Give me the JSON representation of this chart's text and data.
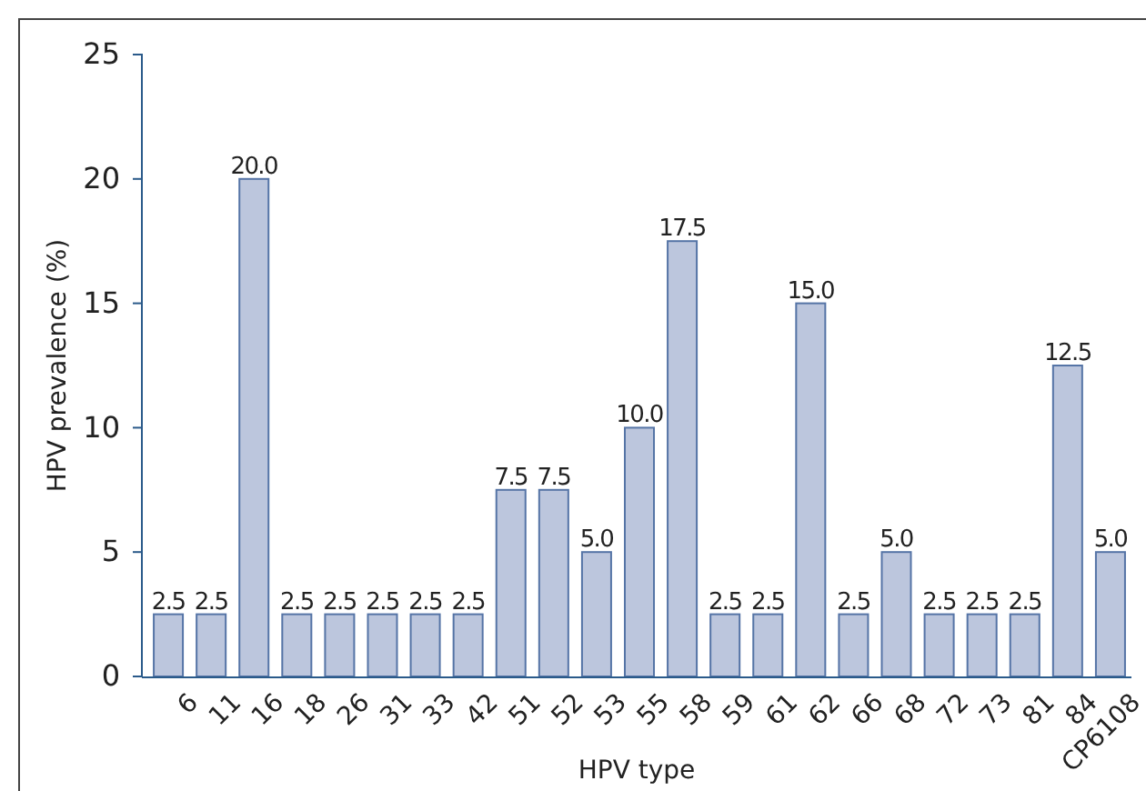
{
  "chart_data": {
    "type": "bar",
    "xlabel": "HPV type",
    "ylabel": "HPV prevalence (%)",
    "categories": [
      "6",
      "11",
      "16",
      "18",
      "26",
      "31",
      "33",
      "42",
      "51",
      "52",
      "53",
      "55",
      "58",
      "59",
      "61",
      "62",
      "66",
      "68",
      "72",
      "73",
      "81",
      "84",
      "CP6108"
    ],
    "values": [
      2.5,
      2.5,
      20.0,
      2.5,
      2.5,
      2.5,
      2.5,
      2.5,
      7.5,
      7.5,
      5.0,
      10.0,
      17.5,
      2.5,
      2.5,
      15.0,
      2.5,
      5.0,
      2.5,
      2.5,
      2.5,
      12.5,
      5.0
    ],
    "value_labels": [
      "2.5",
      "2.5",
      "20.0",
      "2.5",
      "2.5",
      "2.5",
      "2.5",
      "2.5",
      "7.5",
      "7.5",
      "5.0",
      "10.0",
      "17.5",
      "2.5",
      "2.5",
      "15.0",
      "2.5",
      "5.0",
      "2.5",
      "2.5",
      "2.5",
      "12.5",
      "5.0"
    ],
    "color": "#bcc6dd",
    "ylim": [
      0,
      25
    ],
    "yticks": [
      0,
      5,
      10,
      15,
      20,
      25
    ],
    "grid": false
  }
}
